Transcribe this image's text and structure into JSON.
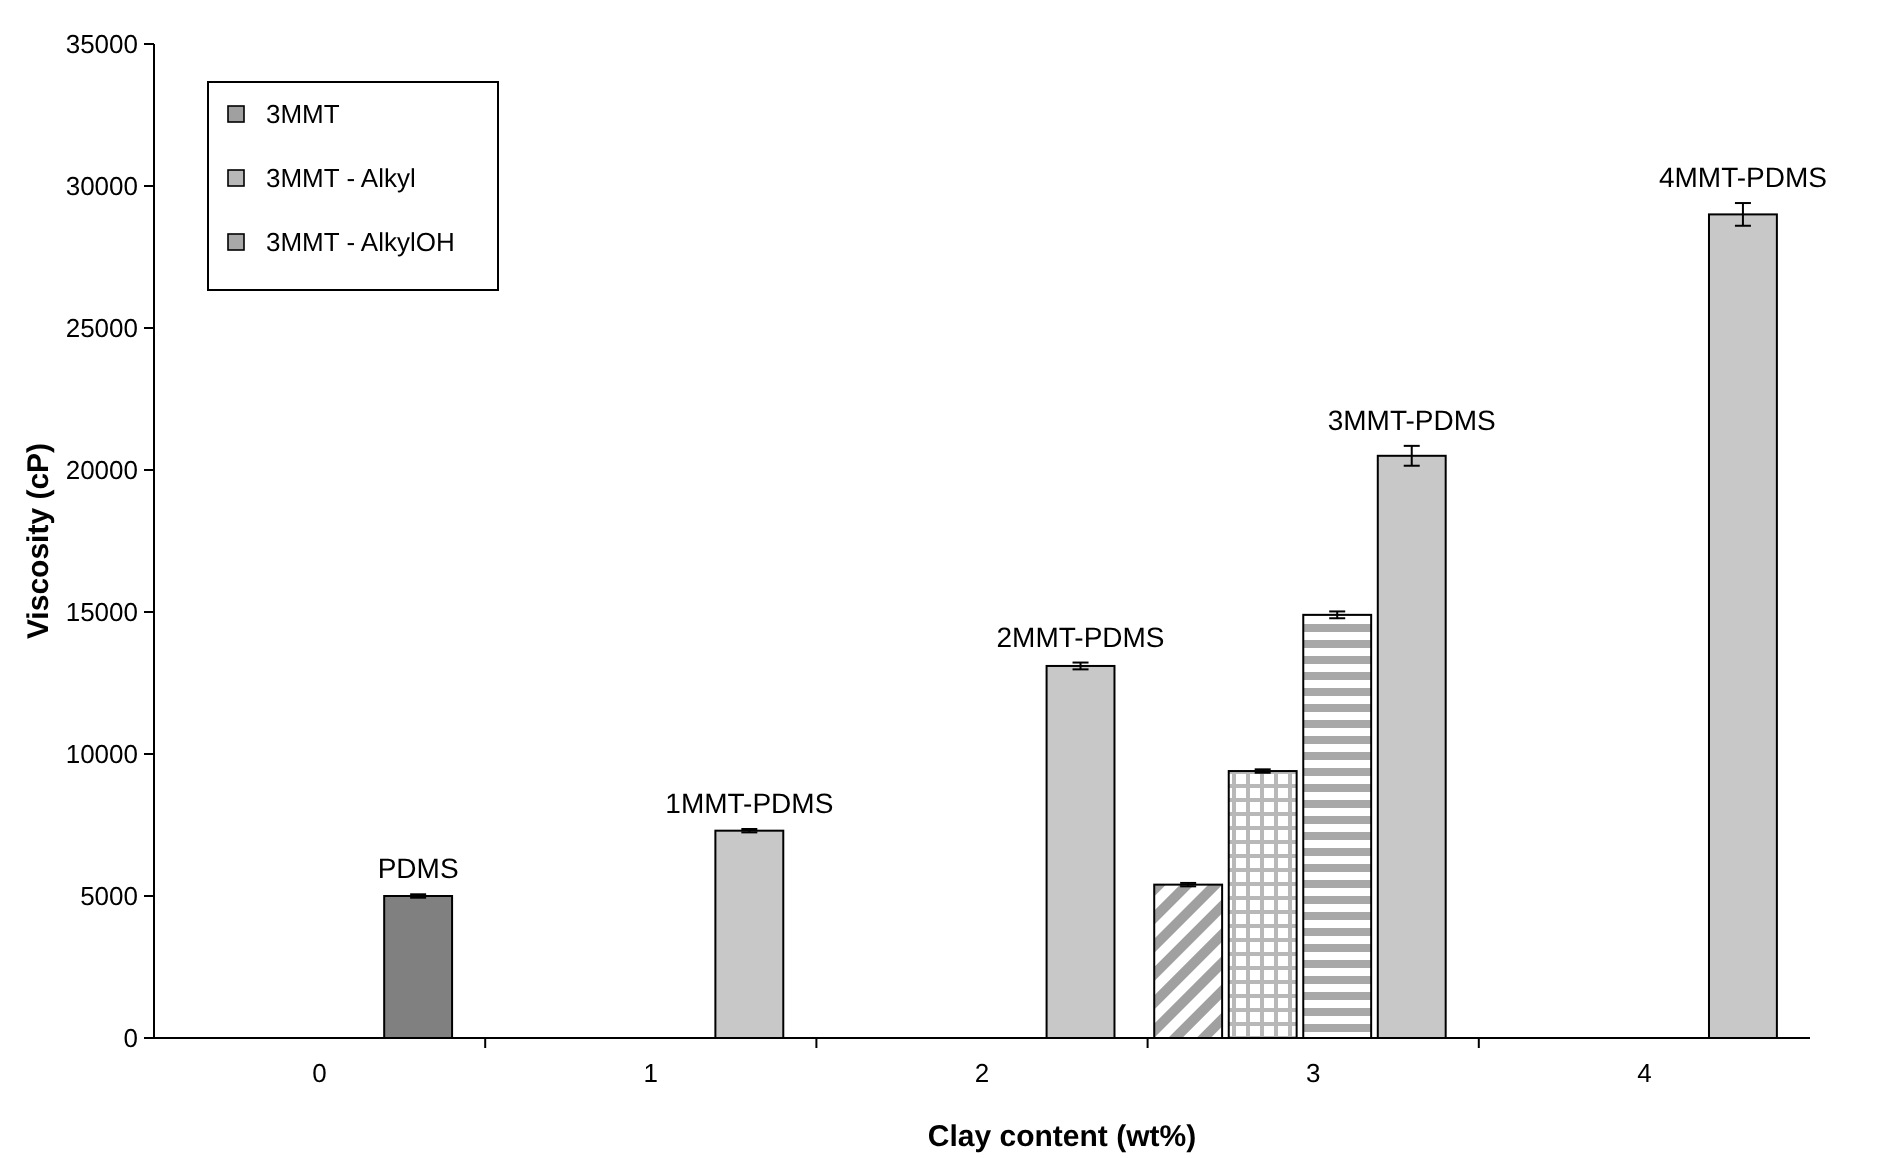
{
  "chart_data": {
    "type": "bar",
    "xlabel": "Clay content (wt%)",
    "ylabel": "Viscosity (cP)",
    "categories": [
      "0",
      "1",
      "2",
      "3",
      "4"
    ],
    "series": [
      {
        "name": "3MMT",
        "color": "#a0a0a0",
        "values": [
          null,
          null,
          null,
          5400,
          null
        ],
        "errors": [
          null,
          null,
          null,
          60,
          null
        ]
      },
      {
        "name": "3MMT - Alkyl",
        "color": "#b8b8b8",
        "values": [
          null,
          null,
          null,
          9400,
          null
        ],
        "errors": [
          null,
          null,
          null,
          60,
          null
        ]
      },
      {
        "name": "3MMT - AlkylOH",
        "color": "#a8a8a8",
        "values": [
          null,
          null,
          null,
          14900,
          null
        ],
        "errors": [
          null,
          null,
          null,
          120,
          null
        ]
      },
      {
        "colors": [
          "#808080",
          "#c8c8c8",
          "#c8c8c8",
          "#c8c8c8",
          "#c8c8c8"
        ],
        "values": [
          5000,
          7300,
          13100,
          20500,
          29000
        ],
        "errors": [
          60,
          60,
          120,
          350,
          400
        ]
      }
    ],
    "ylim": [
      0,
      35000
    ],
    "yticks": [
      0,
      5000,
      10000,
      15000,
      20000,
      25000,
      30000,
      35000
    ],
    "legend": "top left",
    "annotations": [
      "PDMS",
      "1MMT-PDMS",
      "2MMT-PDMS",
      "3MMT-PDMS",
      "4MMT-PDMS"
    ]
  }
}
